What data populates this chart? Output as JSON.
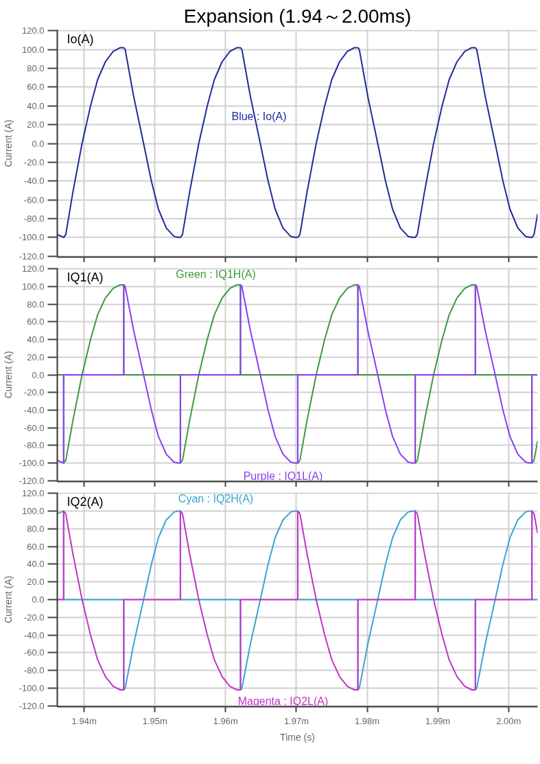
{
  "chart_data": [
    {
      "type": "line",
      "title": "Expansion (1.94～2.00ms)",
      "ylabel": "Current (A)",
      "annotations": [
        "Io(A)"
      ],
      "xlim": [
        1.9362,
        2.0041
      ],
      "ylim": [
        -121,
        121
      ],
      "xticks": [
        {
          "value": 1.94,
          "label": null
        },
        {
          "value": 1.95,
          "label": null
        },
        {
          "value": 1.96,
          "label": null
        },
        {
          "value": 1.97,
          "label": null
        },
        {
          "value": 1.98,
          "label": null
        },
        {
          "value": 1.99,
          "label": null
        },
        {
          "value": 2.0,
          "label": null
        }
      ],
      "yticks": [
        {
          "value": 120,
          "label": "120.0"
        },
        {
          "value": 100,
          "label": "100.0"
        },
        {
          "value": 80,
          "label": "80.0"
        },
        {
          "value": 60,
          "label": "60.0"
        },
        {
          "value": 40,
          "label": "40.0"
        },
        {
          "value": 20,
          "label": "20.0"
        },
        {
          "value": 0,
          "label": "0.0"
        },
        {
          "value": -20,
          "label": "-20.0"
        },
        {
          "value": -40,
          "label": "-40.0"
        },
        {
          "value": -60,
          "label": "-60.0"
        },
        {
          "value": -80,
          "label": "-80.0"
        },
        {
          "value": -100,
          "label": "-100.0"
        },
        {
          "value": -120,
          "label": "-120.0"
        }
      ],
      "grid": true,
      "tick_labels": "y",
      "series": [
        {
          "name": "Blue : Io(A)",
          "color": "#1f2a9c",
          "x": [
            1.9362,
            1.9368,
            1.9371,
            1.9374,
            1.9384,
            1.9397,
            1.9409,
            1.9419,
            1.943,
            1.9441,
            1.9451,
            1.9456,
            1.9458,
            1.947,
            1.9484,
            1.9495,
            1.9505,
            1.9516,
            1.9527,
            1.9533,
            1.9536,
            1.9539,
            1.9549,
            1.9562,
            1.9574,
            1.9584,
            1.9595,
            1.9606,
            1.9616,
            1.9621,
            1.9623,
            1.9635,
            1.9649,
            1.966,
            1.967,
            1.9681,
            1.9692,
            1.9698,
            1.9702,
            1.9705,
            1.9715,
            1.9728,
            1.974,
            1.975,
            1.9761,
            1.9772,
            1.9782,
            1.9787,
            1.9789,
            1.9801,
            1.9815,
            1.9826,
            1.9836,
            1.9847,
            1.9858,
            1.9864,
            1.9868,
            1.9871,
            1.9881,
            1.9894,
            1.9906,
            1.9916,
            1.9927,
            1.9938,
            1.9948,
            1.9953,
            1.9955,
            1.9967,
            1.9981,
            1.9992,
            2.0002,
            2.0013,
            2.0024,
            2.003,
            2.0033,
            2.0036,
            2.0041
          ],
          "values": [
            -97,
            -99,
            -100,
            -97,
            -52,
            0,
            40,
            68,
            87,
            98,
            102,
            102,
            100,
            50,
            0,
            -40,
            -70,
            -90,
            -99,
            -100,
            -100,
            -97,
            -52,
            0,
            40,
            68,
            87,
            98,
            102,
            102,
            100,
            50,
            0,
            -40,
            -70,
            -90,
            -99,
            -100,
            -100,
            -97,
            -52,
            0,
            40,
            68,
            87,
            98,
            102,
            102,
            100,
            50,
            0,
            -40,
            -70,
            -90,
            -99,
            -100,
            -100,
            -97,
            -52,
            0,
            40,
            68,
            87,
            98,
            102,
            102,
            100,
            50,
            0,
            -40,
            -70,
            -90,
            -99,
            -100,
            -100,
            -97,
            -75
          ]
        }
      ]
    },
    {
      "type": "line",
      "ylabel": "Current (A)",
      "annotations": [
        "IQ1(A)"
      ],
      "xlim": [
        1.9362,
        2.0041
      ],
      "ylim": [
        -121,
        121
      ],
      "xticks": [
        {
          "value": 1.94,
          "label": null
        },
        {
          "value": 1.95,
          "label": null
        },
        {
          "value": 1.96,
          "label": null
        },
        {
          "value": 1.97,
          "label": null
        },
        {
          "value": 1.98,
          "label": null
        },
        {
          "value": 1.99,
          "label": null
        },
        {
          "value": 2.0,
          "label": null
        }
      ],
      "yticks": [
        {
          "value": 120,
          "label": "120.0"
        },
        {
          "value": 100,
          "label": "100.0"
        },
        {
          "value": 80,
          "label": "80.0"
        },
        {
          "value": 60,
          "label": "60.0"
        },
        {
          "value": 40,
          "label": "40.0"
        },
        {
          "value": 20,
          "label": "20.0"
        },
        {
          "value": 0,
          "label": "0.0"
        },
        {
          "value": -20,
          "label": "-20.0"
        },
        {
          "value": -40,
          "label": "-40.0"
        },
        {
          "value": -60,
          "label": "-60.0"
        },
        {
          "value": -80,
          "label": "-80.0"
        },
        {
          "value": -100,
          "label": "-100.0"
        },
        {
          "value": -120,
          "label": "-120.0"
        }
      ],
      "grid": true,
      "tick_labels": "y",
      "series": [
        {
          "name": "Green : IQ1H(A)",
          "color": "#3c9a3c",
          "x": [
            1.9362,
            1.9371,
            1.9371,
            1.9374,
            1.9384,
            1.9397,
            1.9409,
            1.9419,
            1.943,
            1.9441,
            1.9451,
            1.9456,
            1.9456,
            1.9536,
            1.9536,
            1.9539,
            1.9549,
            1.9562,
            1.9574,
            1.9584,
            1.9595,
            1.9606,
            1.9616,
            1.9621,
            1.9621,
            1.9702,
            1.9702,
            1.9705,
            1.9715,
            1.9728,
            1.974,
            1.975,
            1.9761,
            1.9772,
            1.9782,
            1.9787,
            1.9787,
            1.9868,
            1.9868,
            1.9871,
            1.9881,
            1.9894,
            1.9906,
            1.9916,
            1.9927,
            1.9938,
            1.9948,
            1.9953,
            1.9953,
            2.0033,
            2.0033,
            2.0036,
            2.0041
          ],
          "values": [
            0,
            0,
            -100,
            -97,
            -52,
            0,
            40,
            68,
            87,
            98,
            102,
            102,
            0,
            0,
            -100,
            -97,
            -52,
            0,
            40,
            68,
            87,
            98,
            102,
            102,
            0,
            0,
            -100,
            -97,
            -52,
            0,
            40,
            68,
            87,
            98,
            102,
            102,
            0,
            0,
            -100,
            -97,
            -52,
            0,
            40,
            68,
            87,
            98,
            102,
            102,
            0,
            0,
            -100,
            -97,
            -75
          ]
        },
        {
          "name": "Purple : IQ1L(A)",
          "color": "#8a3cf5",
          "x": [
            1.9362,
            1.9368,
            1.9371,
            1.9371,
            1.9456,
            1.9456,
            1.9458,
            1.947,
            1.9484,
            1.9495,
            1.9505,
            1.9516,
            1.9527,
            1.9533,
            1.9536,
            1.9536,
            1.9621,
            1.9621,
            1.9623,
            1.9635,
            1.9649,
            1.966,
            1.967,
            1.9681,
            1.9692,
            1.9698,
            1.9702,
            1.9702,
            1.9787,
            1.9787,
            1.9789,
            1.9801,
            1.9815,
            1.9826,
            1.9836,
            1.9847,
            1.9858,
            1.9864,
            1.9868,
            1.9868,
            1.9953,
            1.9953,
            1.9955,
            1.9967,
            1.9981,
            1.9992,
            2.0002,
            2.0013,
            2.0024,
            2.003,
            2.0033,
            2.0033,
            2.0041
          ],
          "values": [
            -97,
            -99,
            -100,
            0,
            0,
            102,
            100,
            50,
            0,
            -40,
            -70,
            -90,
            -99,
            -100,
            -100,
            0,
            0,
            102,
            100,
            50,
            0,
            -40,
            -70,
            -90,
            -99,
            -100,
            -100,
            0,
            0,
            102,
            100,
            50,
            0,
            -40,
            -70,
            -90,
            -99,
            -100,
            -100,
            0,
            0,
            102,
            100,
            50,
            0,
            -40,
            -70,
            -90,
            -99,
            -100,
            -100,
            0,
            0
          ]
        }
      ]
    },
    {
      "type": "line",
      "xlabel": "Time (s)",
      "ylabel": "Current (A)",
      "annotations": [
        "IQ2(A)"
      ],
      "xlim": [
        1.9362,
        2.0041
      ],
      "ylim": [
        -121,
        121
      ],
      "xticks": [
        {
          "value": 1.94,
          "label": "1.94m"
        },
        {
          "value": 1.95,
          "label": "1.95m"
        },
        {
          "value": 1.96,
          "label": "1.96m"
        },
        {
          "value": 1.97,
          "label": "1.97m"
        },
        {
          "value": 1.98,
          "label": "1.98m"
        },
        {
          "value": 1.99,
          "label": "1.99m"
        },
        {
          "value": 2.0,
          "label": "2.00m"
        }
      ],
      "yticks": [
        {
          "value": 120,
          "label": "120.0"
        },
        {
          "value": 100,
          "label": "100.0"
        },
        {
          "value": 80,
          "label": "80.0"
        },
        {
          "value": 60,
          "label": "60.0"
        },
        {
          "value": 40,
          "label": "40.0"
        },
        {
          "value": 20,
          "label": "20.0"
        },
        {
          "value": 0,
          "label": "0.0"
        },
        {
          "value": -20,
          "label": "-20.0"
        },
        {
          "value": -40,
          "label": "-40.0"
        },
        {
          "value": -60,
          "label": "-60.0"
        },
        {
          "value": -80,
          "label": "-80.0"
        },
        {
          "value": -100,
          "label": "-100.0"
        },
        {
          "value": -120,
          "label": "-120.0"
        }
      ],
      "grid": true,
      "series": [
        {
          "name": "Cyan : IQ2H(A)",
          "color": "#3aa3d4",
          "x": [
            1.9362,
            1.9368,
            1.9371,
            1.9371,
            1.9456,
            1.9456,
            1.9458,
            1.947,
            1.9484,
            1.9495,
            1.9505,
            1.9516,
            1.9527,
            1.9533,
            1.9536,
            1.9536,
            1.9621,
            1.9621,
            1.9623,
            1.9635,
            1.9649,
            1.966,
            1.967,
            1.9681,
            1.9692,
            1.9698,
            1.9702,
            1.9702,
            1.9787,
            1.9787,
            1.9789,
            1.9801,
            1.9815,
            1.9826,
            1.9836,
            1.9847,
            1.9858,
            1.9864,
            1.9868,
            1.9868,
            1.9953,
            1.9953,
            1.9955,
            1.9967,
            1.9981,
            1.9992,
            2.0002,
            2.0013,
            2.0024,
            2.003,
            2.0033,
            2.0033,
            2.0041
          ],
          "values": [
            97,
            99,
            100,
            0,
            0,
            -102,
            -100,
            -50,
            0,
            40,
            70,
            90,
            99,
            100,
            100,
            0,
            0,
            -102,
            -100,
            -50,
            0,
            40,
            70,
            90,
            99,
            100,
            100,
            0,
            0,
            -102,
            -100,
            -50,
            0,
            40,
            70,
            90,
            99,
            100,
            100,
            0,
            0,
            -102,
            -100,
            -50,
            0,
            40,
            70,
            90,
            99,
            100,
            100,
            0,
            0
          ]
        },
        {
          "name": "Magenta : IQ2L(A)",
          "color": "#c232c8",
          "x": [
            1.9362,
            1.9371,
            1.9371,
            1.9374,
            1.9384,
            1.9397,
            1.9409,
            1.9419,
            1.943,
            1.9441,
            1.9451,
            1.9456,
            1.9456,
            1.9536,
            1.9536,
            1.9539,
            1.9549,
            1.9562,
            1.9574,
            1.9584,
            1.9595,
            1.9606,
            1.9616,
            1.9621,
            1.9621,
            1.9702,
            1.9702,
            1.9705,
            1.9715,
            1.9728,
            1.974,
            1.975,
            1.9761,
            1.9772,
            1.9782,
            1.9787,
            1.9787,
            1.9868,
            1.9868,
            1.9871,
            1.9881,
            1.9894,
            1.9906,
            1.9916,
            1.9927,
            1.9938,
            1.9948,
            1.9953,
            1.9953,
            2.0033,
            2.0033,
            2.0036,
            2.0041
          ],
          "values": [
            0,
            0,
            100,
            97,
            52,
            0,
            -40,
            -68,
            -87,
            -98,
            -102,
            -102,
            0,
            0,
            100,
            97,
            52,
            0,
            -40,
            -68,
            -87,
            -98,
            -102,
            -102,
            0,
            0,
            100,
            97,
            52,
            0,
            -40,
            -68,
            -87,
            -98,
            -102,
            -102,
            0,
            0,
            100,
            97,
            52,
            0,
            -40,
            -68,
            -87,
            -98,
            -102,
            -102,
            0,
            0,
            100,
            97,
            75
          ]
        }
      ]
    }
  ]
}
